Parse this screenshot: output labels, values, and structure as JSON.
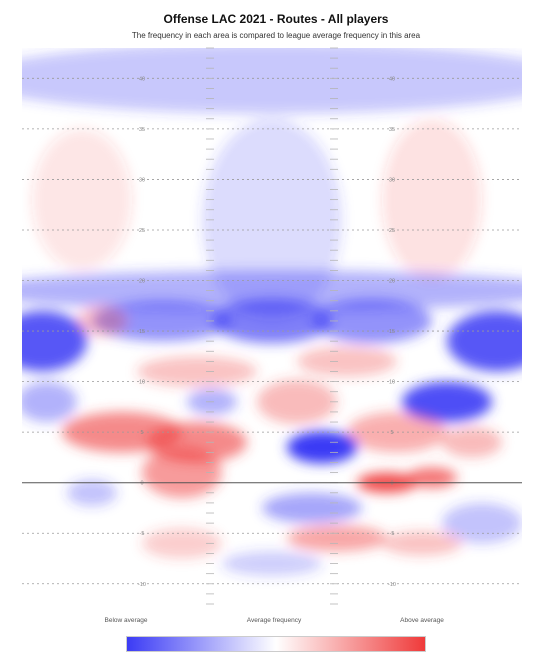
{
  "chart_data": {
    "type": "heatmap",
    "title": "Offense LAC 2021 - Routes - All players",
    "subtitle": "The frequency in each area is compared to league average frequency in this area",
    "y_axis": {
      "range": [
        -12,
        43
      ],
      "ticks": [
        40,
        35,
        30,
        25,
        20,
        15,
        10,
        5,
        0,
        -5,
        -10
      ]
    },
    "line_of_scrimmage": 0,
    "grid": true,
    "colorscale": {
      "low": "#3b3bf5",
      "mid": "#ffffff",
      "high": "#ef3a3a"
    },
    "legend": {
      "labels": [
        "Below average",
        "Average frequency",
        "Above average"
      ],
      "placement": "bottom"
    },
    "blobs": [
      {
        "x": 0.5,
        "y": 40,
        "rx": 0.6,
        "ry": 3.5,
        "v": -0.28
      },
      {
        "x": 0.12,
        "y": 28,
        "rx": 0.1,
        "ry": 7,
        "v": 0.12
      },
      {
        "x": 0.82,
        "y": 28,
        "rx": 0.1,
        "ry": 8,
        "v": 0.14
      },
      {
        "x": 0.5,
        "y": 26,
        "rx": 0.14,
        "ry": 10,
        "v": -0.18
      },
      {
        "x": 0.5,
        "y": 19,
        "rx": 0.6,
        "ry": 2.0,
        "v": -0.4
      },
      {
        "x": 0.04,
        "y": 14,
        "rx": 0.09,
        "ry": 3.0,
        "v": -0.85
      },
      {
        "x": 0.28,
        "y": 16,
        "rx": 0.14,
        "ry": 2.0,
        "v": -0.55
      },
      {
        "x": 0.5,
        "y": 16,
        "rx": 0.12,
        "ry": 2.2,
        "v": -0.65
      },
      {
        "x": 0.7,
        "y": 16,
        "rx": 0.12,
        "ry": 2.2,
        "v": -0.55
      },
      {
        "x": 0.95,
        "y": 14,
        "rx": 0.1,
        "ry": 3.0,
        "v": -0.85
      },
      {
        "x": 0.16,
        "y": 16,
        "rx": 0.05,
        "ry": 1.5,
        "v": 0.3
      },
      {
        "x": 0.35,
        "y": 11,
        "rx": 0.12,
        "ry": 1.5,
        "v": 0.3
      },
      {
        "x": 0.65,
        "y": 12,
        "rx": 0.1,
        "ry": 1.5,
        "v": 0.3
      },
      {
        "x": 0.05,
        "y": 8,
        "rx": 0.06,
        "ry": 2.0,
        "v": -0.4
      },
      {
        "x": 0.38,
        "y": 8,
        "rx": 0.05,
        "ry": 1.3,
        "v": -0.4
      },
      {
        "x": 0.85,
        "y": 8,
        "rx": 0.09,
        "ry": 2.0,
        "v": -0.9
      },
      {
        "x": 0.55,
        "y": 8,
        "rx": 0.08,
        "ry": 2.2,
        "v": 0.35
      },
      {
        "x": 0.2,
        "y": 5,
        "rx": 0.12,
        "ry": 2.0,
        "v": 0.6
      },
      {
        "x": 0.35,
        "y": 4,
        "rx": 0.1,
        "ry": 2.0,
        "v": 0.6
      },
      {
        "x": 0.75,
        "y": 5,
        "rx": 0.1,
        "ry": 2.0,
        "v": 0.4
      },
      {
        "x": 0.9,
        "y": 4,
        "rx": 0.06,
        "ry": 1.5,
        "v": 0.35
      },
      {
        "x": 0.6,
        "y": 3.5,
        "rx": 0.07,
        "ry": 1.6,
        "v": -1.0
      },
      {
        "x": 0.32,
        "y": 1,
        "rx": 0.08,
        "ry": 2.5,
        "v": 0.5
      },
      {
        "x": 0.73,
        "y": 0,
        "rx": 0.06,
        "ry": 1.0,
        "v": 0.9
      },
      {
        "x": 0.82,
        "y": 0.5,
        "rx": 0.05,
        "ry": 1.0,
        "v": 0.7
      },
      {
        "x": 0.14,
        "y": -1,
        "rx": 0.05,
        "ry": 1.3,
        "v": -0.3
      },
      {
        "x": 0.58,
        "y": -2.5,
        "rx": 0.1,
        "ry": 1.5,
        "v": -0.45
      },
      {
        "x": 0.92,
        "y": -4,
        "rx": 0.08,
        "ry": 2.0,
        "v": -0.3
      },
      {
        "x": 0.63,
        "y": -5.5,
        "rx": 0.1,
        "ry": 1.3,
        "v": 0.45
      },
      {
        "x": 0.32,
        "y": -6,
        "rx": 0.08,
        "ry": 1.5,
        "v": 0.25
      },
      {
        "x": 0.8,
        "y": -6,
        "rx": 0.08,
        "ry": 1.2,
        "v": 0.3
      },
      {
        "x": 0.5,
        "y": -8,
        "rx": 0.1,
        "ry": 1.2,
        "v": -0.25
      }
    ]
  }
}
